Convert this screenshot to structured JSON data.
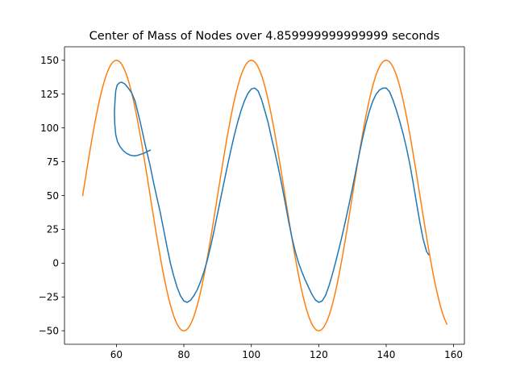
{
  "chart_data": {
    "type": "line",
    "title": "Center of Mass of Nodes over 4.859999999999999 seconds",
    "xlabel": "",
    "ylabel": "",
    "xlim": [
      44.6,
      163.2
    ],
    "ylim": [
      -60,
      160
    ],
    "x_ticks": [
      60,
      80,
      100,
      120,
      140,
      160
    ],
    "y_ticks": [
      -50,
      -25,
      0,
      25,
      50,
      75,
      100,
      125,
      150
    ],
    "grid": false,
    "legend": "none",
    "series": [
      {
        "color": "#1f77b4",
        "points": [
          [
            70,
            83.5
          ],
          [
            69,
            82.3
          ],
          [
            68,
            81.1
          ],
          [
            67,
            80.3
          ],
          [
            66,
            79.5
          ],
          [
            65,
            79.4
          ],
          [
            64,
            79.9
          ],
          [
            63,
            81.2
          ],
          [
            62,
            83.2
          ],
          [
            61,
            86.4
          ],
          [
            60.3,
            90
          ],
          [
            59.8,
            95
          ],
          [
            59.5,
            103
          ],
          [
            59.4,
            112
          ],
          [
            59.6,
            121
          ],
          [
            59.8,
            127.5
          ],
          [
            60.2,
            131.5
          ],
          [
            60.8,
            133.2
          ],
          [
            61.5,
            133.8
          ],
          [
            62.5,
            132.5
          ],
          [
            63.5,
            129.5
          ],
          [
            64.5,
            126
          ],
          [
            65.5,
            120
          ],
          [
            67,
            105
          ],
          [
            68.5,
            88
          ],
          [
            70,
            72
          ],
          [
            71,
            59.7
          ],
          [
            72,
            48.5
          ],
          [
            73,
            37.5
          ],
          [
            74,
            24.9
          ],
          [
            75,
            12
          ],
          [
            76,
            0.1
          ],
          [
            77,
            -9.6
          ],
          [
            78,
            -17.9
          ],
          [
            79,
            -24.2
          ],
          [
            80,
            -28
          ],
          [
            81,
            -29
          ],
          [
            82,
            -27.4
          ],
          [
            83,
            -24
          ],
          [
            84,
            -19.5
          ],
          [
            85,
            -13.4
          ],
          [
            86,
            -6
          ],
          [
            87,
            2.6
          ],
          [
            88,
            13
          ],
          [
            89,
            24.5
          ],
          [
            90,
            36.6
          ],
          [
            91,
            48.9
          ],
          [
            92,
            60.9
          ],
          [
            93,
            72.8
          ],
          [
            94,
            84.2
          ],
          [
            95,
            95
          ],
          [
            96,
            104.7
          ],
          [
            97,
            113.1
          ],
          [
            98,
            120.2
          ],
          [
            99,
            125.5
          ],
          [
            100,
            128.8
          ],
          [
            101,
            129.5
          ],
          [
            102,
            127.4
          ],
          [
            103,
            121.3
          ],
          [
            104,
            112.8
          ],
          [
            105,
            103.8
          ],
          [
            106,
            92.5
          ],
          [
            107,
            82.1
          ],
          [
            108,
            70.6
          ],
          [
            109,
            58.4
          ],
          [
            110,
            45.4
          ],
          [
            111,
            31.9
          ],
          [
            112,
            19.5
          ],
          [
            113,
            9
          ],
          [
            114,
            0.3
          ],
          [
            115,
            -6.5
          ],
          [
            116,
            -12.5
          ],
          [
            117,
            -18
          ],
          [
            118,
            -23.2
          ],
          [
            119,
            -27.2
          ],
          [
            120,
            -29
          ],
          [
            121,
            -28
          ],
          [
            122,
            -24
          ],
          [
            123,
            -17.1
          ],
          [
            124,
            -8.7
          ],
          [
            125,
            0.7
          ],
          [
            126,
            10.6
          ],
          [
            127,
            21
          ],
          [
            128,
            32
          ],
          [
            129,
            43.6
          ],
          [
            130,
            55.6
          ],
          [
            131,
            68.2
          ],
          [
            132,
            80.6
          ],
          [
            133,
            92.3
          ],
          [
            134,
            103
          ],
          [
            135,
            112.2
          ],
          [
            136,
            119.6
          ],
          [
            137,
            124.9
          ],
          [
            138,
            128
          ],
          [
            139,
            129.4
          ],
          [
            140,
            129.5
          ],
          [
            141,
            126.8
          ],
          [
            142,
            120.7
          ],
          [
            143,
            113.4
          ],
          [
            144,
            105
          ],
          [
            145,
            95.9
          ],
          [
            146,
            85.4
          ],
          [
            147,
            73.4
          ],
          [
            148,
            59.5
          ],
          [
            149,
            44.5
          ],
          [
            150,
            30.1
          ],
          [
            151,
            17.3
          ],
          [
            152,
            8.5
          ],
          [
            152.6,
            6.2
          ]
        ]
      },
      {
        "color": "#ff7f0e",
        "function": "50 + 100*sin(pi*(x-50)/20)",
        "x_start": 50,
        "x_end": 158
      }
    ]
  }
}
